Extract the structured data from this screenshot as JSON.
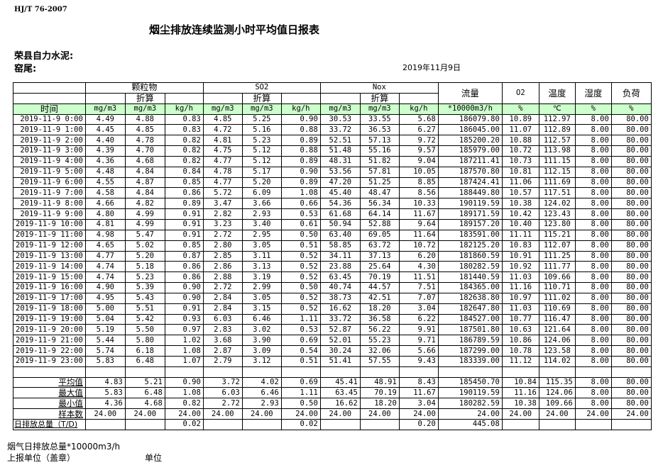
{
  "header": {
    "standard": "HJ/T  76-2007",
    "title": "烟尘排放连续监测小时平均值日报表",
    "company": "荣县自力水泥:",
    "kiln": "窑尾:",
    "date": "2019年11月9日"
  },
  "table": {
    "groups": {
      "particulate": "颗粒物",
      "so2": "SO2",
      "nox": "Nox",
      "flow": "流量",
      "o2": "O2",
      "temp": "温度",
      "humidity": "湿度",
      "load": "负荷"
    },
    "converted_label": "折算",
    "time_label": "时间",
    "units": [
      "mg/m3",
      "mg/m3",
      "kg/h",
      "mg/m3",
      "mg/m3",
      "kg/h",
      "mg/m3",
      "mg/m3",
      "kg/h",
      "*10000m3/h",
      "%",
      "℃",
      "%",
      "%"
    ],
    "rows": [
      [
        "2019-11-9 0:00",
        "4.49",
        "4.88",
        "0.83",
        "4.85",
        "5.25",
        "0.90",
        "30.53",
        "33.55",
        "5.68",
        "186079.80",
        "10.89",
        "112.97",
        "8.00",
        "80.00"
      ],
      [
        "2019-11-9 1:00",
        "4.45",
        "4.85",
        "0.83",
        "4.72",
        "5.16",
        "0.88",
        "33.72",
        "36.53",
        "6.27",
        "186045.00",
        "11.07",
        "112.89",
        "8.00",
        "80.00"
      ],
      [
        "2019-11-9 2:00",
        "4.40",
        "4.78",
        "0.82",
        "4.81",
        "5.23",
        "0.89",
        "52.51",
        "57.13",
        "9.72",
        "185200.20",
        "10.88",
        "112.57",
        "8.00",
        "80.00"
      ],
      [
        "2019-11-9 3:00",
        "4.39",
        "4.70",
        "0.82",
        "4.75",
        "5.12",
        "0.88",
        "51.48",
        "55.16",
        "9.57",
        "185979.00",
        "10.72",
        "113.98",
        "8.00",
        "80.00"
      ],
      [
        "2019-11-9 4:00",
        "4.36",
        "4.68",
        "0.82",
        "4.77",
        "5.12",
        "0.89",
        "48.31",
        "51.82",
        "9.04",
        "187211.41",
        "10.73",
        "111.15",
        "8.00",
        "80.00"
      ],
      [
        "2019-11-9 5:00",
        "4.48",
        "4.84",
        "0.84",
        "4.78",
        "5.17",
        "0.90",
        "53.56",
        "57.81",
        "10.05",
        "187570.80",
        "10.81",
        "112.15",
        "8.00",
        "80.00"
      ],
      [
        "2019-11-9 6:00",
        "4.55",
        "4.87",
        "0.85",
        "4.77",
        "5.20",
        "0.89",
        "47.20",
        "51.25",
        "8.85",
        "187424.41",
        "11.06",
        "111.69",
        "8.00",
        "80.00"
      ],
      [
        "2019-11-9 7:00",
        "4.58",
        "4.84",
        "0.86",
        "5.72",
        "6.09",
        "1.08",
        "45.40",
        "48.47",
        "8.56",
        "188449.80",
        "10.57",
        "117.51",
        "8.00",
        "80.00"
      ],
      [
        "2019-11-9 8:00",
        "4.66",
        "4.82",
        "0.89",
        "3.47",
        "3.66",
        "0.66",
        "54.36",
        "56.34",
        "10.33",
        "190119.59",
        "10.38",
        "124.02",
        "8.00",
        "80.00"
      ],
      [
        "2019-11-9 9:00",
        "4.80",
        "4.99",
        "0.91",
        "2.82",
        "2.93",
        "0.53",
        "61.68",
        "64.14",
        "11.67",
        "189171.59",
        "10.42",
        "123.43",
        "8.00",
        "80.00"
      ],
      [
        "2019-11-9 10:00",
        "4.81",
        "4.99",
        "0.91",
        "3.23",
        "3.40",
        "0.61",
        "50.94",
        "52.88",
        "9.64",
        "189157.20",
        "10.40",
        "123.80",
        "8.00",
        "80.00"
      ],
      [
        "2019-11-9 11:00",
        "4.98",
        "5.47",
        "0.91",
        "2.72",
        "2.95",
        "0.50",
        "63.40",
        "69.05",
        "11.64",
        "183591.00",
        "11.11",
        "115.21",
        "8.00",
        "80.00"
      ],
      [
        "2019-11-9 12:00",
        "4.65",
        "5.02",
        "0.85",
        "2.80",
        "3.05",
        "0.51",
        "58.85",
        "63.72",
        "10.72",
        "182125.20",
        "10.83",
        "112.07",
        "8.00",
        "80.00"
      ],
      [
        "2019-11-9 13:00",
        "4.77",
        "5.20",
        "0.87",
        "2.85",
        "3.11",
        "0.52",
        "34.11",
        "37.13",
        "6.20",
        "181860.59",
        "10.91",
        "111.25",
        "8.00",
        "80.00"
      ],
      [
        "2019-11-9 14:00",
        "4.74",
        "5.18",
        "0.86",
        "2.86",
        "3.13",
        "0.52",
        "23.88",
        "25.64",
        "4.30",
        "180282.59",
        "10.92",
        "111.77",
        "8.00",
        "80.00"
      ],
      [
        "2019-11-9 15:00",
        "4.74",
        "5.23",
        "0.86",
        "2.88",
        "3.19",
        "0.52",
        "63.45",
        "70.19",
        "11.51",
        "181440.59",
        "11.03",
        "109.66",
        "8.00",
        "80.00"
      ],
      [
        "2019-11-9 16:00",
        "4.90",
        "5.39",
        "0.90",
        "2.72",
        "2.99",
        "0.50",
        "40.74",
        "44.57",
        "7.51",
        "184365.00",
        "11.16",
        "110.71",
        "8.00",
        "80.00"
      ],
      [
        "2019-11-9 17:00",
        "4.95",
        "5.43",
        "0.90",
        "2.84",
        "3.05",
        "0.52",
        "38.73",
        "42.51",
        "7.07",
        "182638.80",
        "10.97",
        "111.02",
        "8.00",
        "80.00"
      ],
      [
        "2019-11-9 18:00",
        "5.00",
        "5.51",
        "0.91",
        "2.84",
        "3.15",
        "0.52",
        "16.62",
        "18.20",
        "3.04",
        "182647.80",
        "11.03",
        "110.69",
        "8.00",
        "80.00"
      ],
      [
        "2019-11-9 19:00",
        "5.04",
        "5.42",
        "0.93",
        "6.03",
        "6.46",
        "1.11",
        "33.72",
        "36.58",
        "6.22",
        "184527.00",
        "10.77",
        "116.47",
        "8.00",
        "80.00"
      ],
      [
        "2019-11-9 20:00",
        "5.19",
        "5.50",
        "0.97",
        "2.83",
        "3.02",
        "0.53",
        "52.87",
        "56.22",
        "9.91",
        "187501.80",
        "10.63",
        "121.64",
        "8.00",
        "80.00"
      ],
      [
        "2019-11-9 21:00",
        "5.44",
        "5.80",
        "1.02",
        "3.68",
        "3.90",
        "0.69",
        "52.01",
        "55.23",
        "9.71",
        "186789.59",
        "10.86",
        "124.06",
        "8.00",
        "80.00"
      ],
      [
        "2019-11-9 22:00",
        "5.74",
        "6.18",
        "1.08",
        "2.87",
        "3.09",
        "0.54",
        "30.24",
        "32.06",
        "5.66",
        "187299.00",
        "10.78",
        "123.58",
        "8.00",
        "80.00"
      ],
      [
        "2019-11-9 23:00",
        "5.83",
        "6.48",
        "1.07",
        "2.79",
        "3.12",
        "0.51",
        "51.41",
        "57.55",
        "9.43",
        "183339.00",
        "11.12",
        "114.02",
        "8.00",
        "80.00"
      ]
    ],
    "stats": [
      [
        "平均值",
        "4.83",
        "5.21",
        "0.90",
        "3.72",
        "4.02",
        "0.69",
        "45.41",
        "48.91",
        "8.43",
        "185450.70",
        "10.84",
        "115.35",
        "8.00",
        "80.00"
      ],
      [
        "最大值",
        "5.83",
        "6.48",
        "1.08",
        "6.03",
        "6.46",
        "1.11",
        "63.45",
        "70.19",
        "11.67",
        "190119.59",
        "11.16",
        "124.06",
        "8.00",
        "80.00"
      ],
      [
        "最小值",
        "4.36",
        "4.68",
        "0.82",
        "2.72",
        "2.93",
        "0.50",
        "16.62",
        "18.20",
        "3.04",
        "180282.59",
        "10.38",
        "109.66",
        "8.00",
        "80.00"
      ],
      [
        "样本数",
        "24.00",
        "24.00",
        "24.00",
        "24.00",
        "24.00",
        "24.00",
        "24.00",
        "24.00",
        "24.00",
        "24.00",
        "24.00",
        "24.00",
        "24.00",
        "24.00"
      ]
    ],
    "daily_total": [
      "日排放总量（T/D)",
      "",
      "",
      "0.02",
      "",
      "",
      "0.02",
      "",
      "",
      "0.20",
      "445.08",
      "",
      "",
      "",
      ""
    ]
  },
  "footer": {
    "flue_gas_total": "烟气日排放总量*10000m3/h",
    "reporting_unit": "上报单位（盖章）",
    "unit": "单位"
  },
  "colors": {
    "units_row_bg": "#ccffcc"
  }
}
